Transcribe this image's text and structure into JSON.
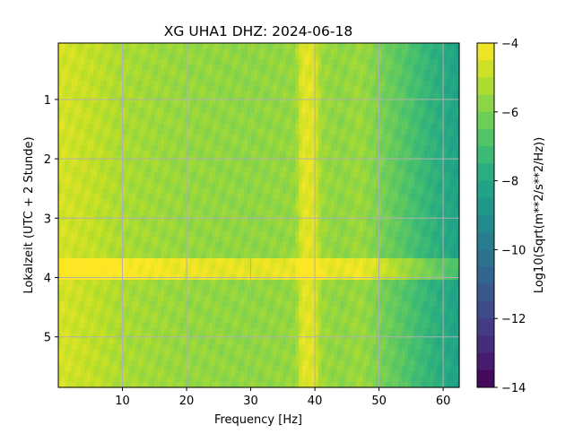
{
  "chart_data": {
    "type": "heatmap",
    "title": "XG UHA1  DHZ: 2024-06-18",
    "xlabel": "Frequency [Hz]",
    "ylabel": "Lokalzeit (UTC + 2 Stunde)",
    "colorbar_label": "Log10(Sqrt(m**2/s**2/Hz))",
    "colormap": "viridis",
    "xlim": [
      0,
      62.5
    ],
    "ylim": [
      5.85,
      0.05
    ],
    "y_inverted": true,
    "clim": [
      -14,
      -4
    ],
    "x_ticks": [
      {
        "value": 10,
        "label": "10"
      },
      {
        "value": 20,
        "label": "20"
      },
      {
        "value": 30,
        "label": "30"
      },
      {
        "value": 40,
        "label": "40"
      },
      {
        "value": 50,
        "label": "50"
      },
      {
        "value": 60,
        "label": "60"
      }
    ],
    "y_ticks": [
      {
        "value": 1,
        "label": "1"
      },
      {
        "value": 2,
        "label": "2"
      },
      {
        "value": 3,
        "label": "3"
      },
      {
        "value": 4,
        "label": "4"
      },
      {
        "value": 5,
        "label": "5"
      }
    ],
    "colorbar_ticks": [
      {
        "value": -4,
        "label": "−4"
      },
      {
        "value": -6,
        "label": "−6"
      },
      {
        "value": -8,
        "label": "−8"
      },
      {
        "value": -10,
        "label": "−10"
      },
      {
        "value": -12,
        "label": "−12"
      },
      {
        "value": -14,
        "label": "−14"
      }
    ],
    "grid": true,
    "frequency_profile": [
      {
        "f": 0,
        "v": -4.6
      },
      {
        "f": 5,
        "v": -4.9
      },
      {
        "f": 10,
        "v": -5.3
      },
      {
        "f": 20,
        "v": -5.6
      },
      {
        "f": 30,
        "v": -5.7
      },
      {
        "f": 37,
        "v": -5.6
      },
      {
        "f": 38,
        "v": -4.4
      },
      {
        "f": 40,
        "v": -4.5
      },
      {
        "f": 41,
        "v": -5.5
      },
      {
        "f": 44,
        "v": -5.7
      },
      {
        "f": 47,
        "v": -5.5
      },
      {
        "f": 50,
        "v": -6.0
      },
      {
        "f": 54,
        "v": -6.7
      },
      {
        "f": 58,
        "v": -7.5
      },
      {
        "f": 62.5,
        "v": -8.3
      }
    ],
    "time_bands": [
      {
        "t_start": 3.7,
        "t_end": 4.05,
        "delta": 1.3
      }
    ]
  }
}
